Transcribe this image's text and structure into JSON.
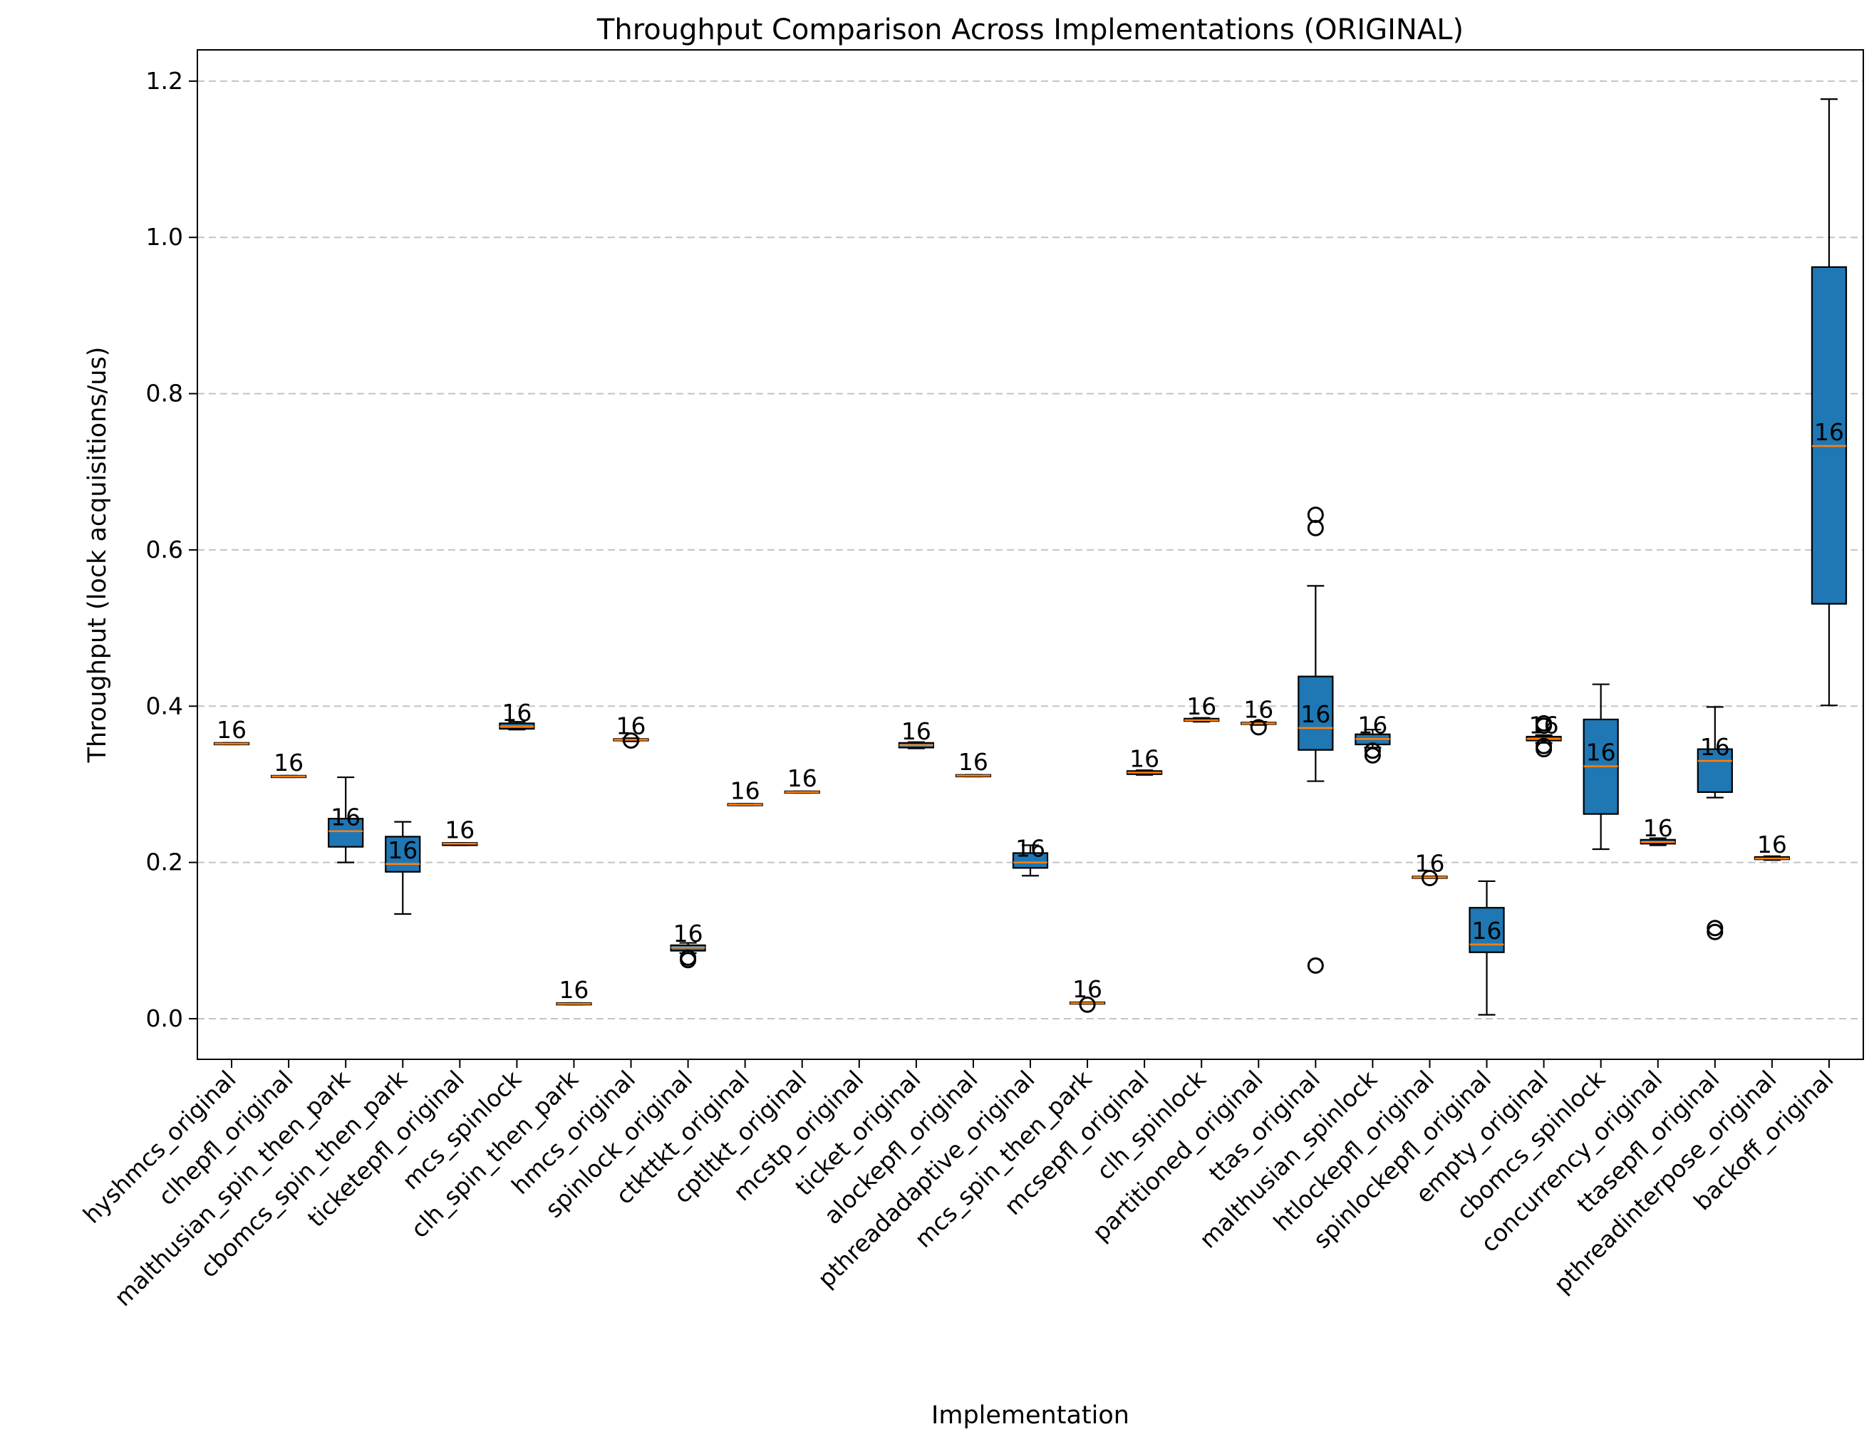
{
  "chart_data": {
    "type": "box",
    "title": "Throughput Comparison Across Implementations (ORIGINAL)",
    "xlabel": "Implementation",
    "ylabel": "Throughput (lock acquisitions/us)",
    "ylim": [
      -0.052,
      1.24
    ],
    "yticks": [
      "0.0",
      "0.2",
      "0.4",
      "0.6",
      "0.8",
      "1.0",
      "1.2"
    ],
    "grid": "y-dashed",
    "box_color": "#1f77b4",
    "median_color": "#ff7f0e",
    "categories": [
      {
        "name": "hyshmcs_original",
        "q1": 0.351,
        "median": 0.352,
        "q3": 0.353,
        "wlo": 0.351,
        "whi": 0.353,
        "fliers": [],
        "label": "16"
      },
      {
        "name": "clhepfl_original",
        "q1": 0.309,
        "median": 0.31,
        "q3": 0.311,
        "wlo": 0.309,
        "whi": 0.311,
        "fliers": [],
        "label": "16"
      },
      {
        "name": "malthusian_spin_then_park",
        "q1": 0.22,
        "median": 0.24,
        "q3": 0.256,
        "wlo": 0.2,
        "whi": 0.309,
        "fliers": [],
        "label": "16"
      },
      {
        "name": "cbomcs_spin_then_park",
        "q1": 0.188,
        "median": 0.198,
        "q3": 0.233,
        "wlo": 0.134,
        "whi": 0.252,
        "fliers": [],
        "label": "16"
      },
      {
        "name": "ticketepfl_original",
        "q1": 0.222,
        "median": 0.224,
        "q3": 0.225,
        "wlo": 0.222,
        "whi": 0.225,
        "fliers": [],
        "label": "16"
      },
      {
        "name": "mcs_spinlock",
        "q1": 0.371,
        "median": 0.374,
        "q3": 0.378,
        "wlo": 0.37,
        "whi": 0.38,
        "fliers": [],
        "label": "16"
      },
      {
        "name": "clh_spin_then_park",
        "q1": 0.018,
        "median": 0.019,
        "q3": 0.02,
        "wlo": 0.018,
        "whi": 0.02,
        "fliers": [],
        "label": "16"
      },
      {
        "name": "hmcs_original",
        "q1": 0.356,
        "median": 0.357,
        "q3": 0.358,
        "wlo": 0.355,
        "whi": 0.359,
        "fliers": [
          0.356
        ],
        "label": "16"
      },
      {
        "name": "spinlock_original",
        "q1": 0.087,
        "median": 0.091,
        "q3": 0.094,
        "wlo": 0.084,
        "whi": 0.097,
        "fliers": [
          0.075,
          0.078
        ],
        "label": "16"
      },
      {
        "name": "ctkttkt_original",
        "q1": 0.273,
        "median": 0.274,
        "q3": 0.275,
        "wlo": 0.273,
        "whi": 0.275,
        "fliers": [],
        "label": "16"
      },
      {
        "name": "cptltkt_original",
        "q1": 0.289,
        "median": 0.29,
        "q3": 0.291,
        "wlo": 0.289,
        "whi": 0.291,
        "fliers": [],
        "label": "16"
      },
      {
        "name": "mcstp_original",
        "q1": null,
        "median": null,
        "q3": null,
        "wlo": null,
        "whi": null,
        "fliers": [],
        "label": ""
      },
      {
        "name": "ticket_original",
        "q1": 0.347,
        "median": 0.35,
        "q3": 0.353,
        "wlo": 0.346,
        "whi": 0.354,
        "fliers": [],
        "label": "16"
      },
      {
        "name": "alockepfl_original",
        "q1": 0.31,
        "median": 0.311,
        "q3": 0.312,
        "wlo": 0.31,
        "whi": 0.312,
        "fliers": [],
        "label": "16"
      },
      {
        "name": "pthreadadaptive_original",
        "q1": 0.193,
        "median": 0.2,
        "q3": 0.212,
        "wlo": 0.183,
        "whi": 0.222,
        "fliers": [],
        "label": "16"
      },
      {
        "name": "mcs_spin_then_park",
        "q1": 0.019,
        "median": 0.02,
        "q3": 0.021,
        "wlo": 0.019,
        "whi": 0.021,
        "fliers": [
          0.018
        ],
        "label": "16"
      },
      {
        "name": "mcsepfl_original",
        "q1": 0.313,
        "median": 0.315,
        "q3": 0.317,
        "wlo": 0.312,
        "whi": 0.318,
        "fliers": [],
        "label": "16"
      },
      {
        "name": "clh_spinlock",
        "q1": 0.381,
        "median": 0.382,
        "q3": 0.384,
        "wlo": 0.38,
        "whi": 0.385,
        "fliers": [],
        "label": "16"
      },
      {
        "name": "partitioned_original",
        "q1": 0.377,
        "median": 0.378,
        "q3": 0.379,
        "wlo": 0.376,
        "whi": 0.38,
        "fliers": [
          0.373
        ],
        "label": "16"
      },
      {
        "name": "ttas_original",
        "q1": 0.344,
        "median": 0.372,
        "q3": 0.438,
        "wlo": 0.304,
        "whi": 0.554,
        "fliers": [
          0.628,
          0.645,
          0.068
        ],
        "label": "16"
      },
      {
        "name": "malthusian_spinlock",
        "q1": 0.351,
        "median": 0.358,
        "q3": 0.364,
        "wlo": 0.347,
        "whi": 0.37,
        "fliers": [
          0.337,
          0.343
        ],
        "label": "16"
      },
      {
        "name": "htlockepfl_original",
        "q1": 0.18,
        "median": 0.181,
        "q3": 0.182,
        "wlo": 0.18,
        "whi": 0.182,
        "fliers": [
          0.18
        ],
        "label": "16"
      },
      {
        "name": "spinlockepfl_original",
        "q1": 0.085,
        "median": 0.095,
        "q3": 0.142,
        "wlo": 0.005,
        "whi": 0.176,
        "fliers": [],
        "label": "16"
      },
      {
        "name": "empty_original",
        "q1": 0.356,
        "median": 0.358,
        "q3": 0.361,
        "wlo": 0.353,
        "whi": 0.363,
        "fliers": [
          0.345,
          0.349,
          0.375,
          0.378
        ],
        "label": "16"
      },
      {
        "name": "cbomcs_spinlock",
        "q1": 0.262,
        "median": 0.323,
        "q3": 0.383,
        "wlo": 0.217,
        "whi": 0.428,
        "fliers": [],
        "label": "16"
      },
      {
        "name": "concurrency_original",
        "q1": 0.224,
        "median": 0.226,
        "q3": 0.229,
        "wlo": 0.222,
        "whi": 0.231,
        "fliers": [],
        "label": "16"
      },
      {
        "name": "ttasepfl_original",
        "q1": 0.29,
        "median": 0.33,
        "q3": 0.345,
        "wlo": 0.283,
        "whi": 0.399,
        "fliers": [
          0.111,
          0.116
        ],
        "label": "16"
      },
      {
        "name": "pthreadinterpose_original",
        "q1": 0.204,
        "median": 0.205,
        "q3": 0.207,
        "wlo": 0.203,
        "whi": 0.208,
        "fliers": [],
        "label": "16"
      },
      {
        "name": "backoff_original",
        "q1": 0.531,
        "median": 0.733,
        "q3": 0.962,
        "wlo": 0.401,
        "whi": 1.177,
        "fliers": [],
        "label": "16"
      }
    ]
  }
}
